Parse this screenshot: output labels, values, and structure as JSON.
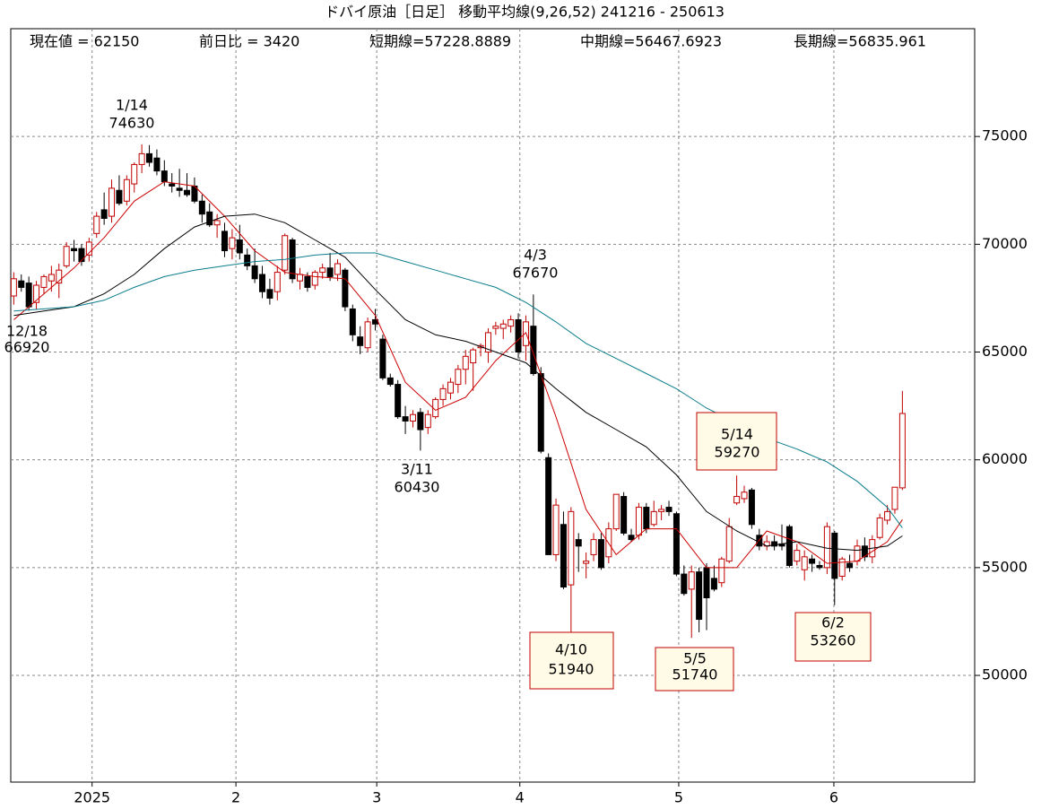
{
  "chart_data": {
    "type": "candlestick",
    "title": "ドバイ原油［日足］ 移動平均線(9,26,52)  241216 - 250613",
    "header": [
      "現在値 = 62150",
      "前日比 = 3420",
      "短期線=57228.8889",
      "中期線=56467.6923",
      "長期線=56835.961"
    ],
    "up_color": "#c00000",
    "down_color": "#000000",
    "candles": [
      [
        67600,
        68700,
        67200,
        68400
      ],
      [
        68300,
        68600,
        67800,
        68000
      ],
      [
        68200,
        68500,
        66920,
        67100
      ],
      [
        67300,
        68300,
        67000,
        68100
      ],
      [
        68000,
        68600,
        67700,
        68500
      ],
      [
        68300,
        69000,
        67800,
        68600
      ],
      [
        68200,
        69100,
        67500,
        68800
      ],
      [
        69000,
        70100,
        68900,
        69900
      ],
      [
        69800,
        70200,
        69200,
        69700
      ],
      [
        69800,
        70000,
        69000,
        69200
      ],
      [
        69500,
        70300,
        69200,
        70100
      ],
      [
        70500,
        71500,
        70300,
        71300
      ],
      [
        71600,
        72400,
        70900,
        71200
      ],
      [
        71300,
        73000,
        71000,
        72600
      ],
      [
        72500,
        73200,
        71800,
        71900
      ],
      [
        72000,
        73200,
        71800,
        73000
      ],
      [
        72800,
        73800,
        72400,
        73700
      ],
      [
        73700,
        74630,
        73300,
        74200
      ],
      [
        74200,
        74600,
        73600,
        73800
      ],
      [
        74000,
        74400,
        73200,
        73400
      ],
      [
        73400,
        73900,
        72700,
        72900
      ],
      [
        72800,
        73300,
        72400,
        72700
      ],
      [
        72600,
        73500,
        72200,
        72500
      ],
      [
        72500,
        73300,
        72200,
        72300
      ],
      [
        72700,
        73100,
        71900,
        72000
      ],
      [
        72000,
        72300,
        71000,
        71400
      ],
      [
        71500,
        71900,
        70800,
        70900
      ],
      [
        70900,
        71400,
        70300,
        71100
      ],
      [
        70600,
        71000,
        69400,
        69700
      ],
      [
        69800,
        70700,
        69300,
        70300
      ],
      [
        70200,
        70900,
        69300,
        69600
      ],
      [
        69500,
        69800,
        68800,
        69000
      ],
      [
        69000,
        69800,
        68200,
        68400
      ],
      [
        68600,
        69000,
        67500,
        67800
      ],
      [
        67900,
        68400,
        67200,
        67500
      ],
      [
        67800,
        69000,
        67400,
        68700
      ],
      [
        68800,
        70500,
        68600,
        70400
      ],
      [
        70200,
        70300,
        68200,
        68400
      ],
      [
        68300,
        68900,
        67900,
        68600
      ],
      [
        68500,
        68700,
        67800,
        68000
      ],
      [
        68100,
        68800,
        67900,
        68700
      ],
      [
        68700,
        69100,
        68400,
        68900
      ],
      [
        68900,
        69600,
        68300,
        68500
      ],
      [
        68600,
        69300,
        68300,
        69100
      ],
      [
        68800,
        68900,
        66900,
        67100
      ],
      [
        67000,
        67200,
        65500,
        65800
      ],
      [
        65700,
        66200,
        64900,
        65300
      ],
      [
        65200,
        66600,
        65000,
        66400
      ],
      [
        66500,
        67000,
        66000,
        66300
      ],
      [
        65600,
        65800,
        63700,
        63800
      ],
      [
        63800,
        64000,
        63400,
        63500
      ],
      [
        63500,
        63700,
        61900,
        62000
      ],
      [
        62000,
        62500,
        61200,
        61800
      ],
      [
        61800,
        62300,
        61500,
        62100
      ],
      [
        62200,
        62400,
        60430,
        61400
      ],
      [
        61500,
        62300,
        61200,
        62100
      ],
      [
        62000,
        62900,
        61900,
        62800
      ],
      [
        62800,
        63500,
        62500,
        63300
      ],
      [
        63100,
        63800,
        62800,
        63600
      ],
      [
        63500,
        64400,
        63100,
        64200
      ],
      [
        64200,
        65100,
        63500,
        64800
      ],
      [
        64500,
        65200,
        63200,
        65100
      ],
      [
        65200,
        65400,
        64800,
        65300
      ],
      [
        65000,
        66100,
        64500,
        65900
      ],
      [
        66100,
        66400,
        65800,
        66200
      ],
      [
        66100,
        66500,
        65600,
        66300
      ],
      [
        66200,
        66700,
        65900,
        66500
      ],
      [
        66500,
        66800,
        64700,
        65000
      ],
      [
        65300,
        66700,
        64600,
        66400
      ],
      [
        66200,
        67670,
        63900,
        64000
      ],
      [
        64000,
        64300,
        60300,
        60400
      ],
      [
        60100,
        60300,
        55600,
        55600
      ],
      [
        55600,
        58200,
        55300,
        57900
      ],
      [
        57000,
        57600,
        54000,
        54100
      ],
      [
        54200,
        57800,
        51940,
        57600
      ],
      [
        56300,
        56600,
        54800,
        56000
      ],
      [
        55200,
        55700,
        54500,
        55300
      ],
      [
        55600,
        56600,
        55300,
        56300
      ],
      [
        56300,
        56600,
        54900,
        55000
      ],
      [
        55500,
        57100,
        55200,
        56800
      ],
      [
        56800,
        58400,
        56700,
        58400
      ],
      [
        58300,
        58500,
        56500,
        56600
      ],
      [
        56500,
        56800,
        56200,
        56300
      ],
      [
        56500,
        58000,
        56300,
        57800
      ],
      [
        57800,
        58000,
        56600,
        56800
      ],
      [
        57000,
        58100,
        56900,
        57600
      ],
      [
        57600,
        57900,
        57200,
        57700
      ],
      [
        57800,
        58100,
        57400,
        57600
      ],
      [
        57500,
        57600,
        54600,
        54700
      ],
      [
        54700,
        55100,
        53700,
        53800
      ],
      [
        54000,
        55100,
        51740,
        54800
      ],
      [
        54800,
        55000,
        52000,
        52600
      ],
      [
        55000,
        55200,
        52100,
        53600
      ],
      [
        54500,
        55100,
        53900,
        54000
      ],
      [
        54300,
        55500,
        54100,
        55400
      ],
      [
        55300,
        57300,
        55200,
        56900
      ],
      [
        58000,
        59270,
        57900,
        58300
      ],
      [
        58200,
        58800,
        58000,
        58500
      ],
      [
        58600,
        58700,
        56800,
        57000
      ],
      [
        56500,
        56800,
        55800,
        56000
      ],
      [
        56000,
        56500,
        55800,
        56200
      ],
      [
        56200,
        56500,
        55800,
        56000
      ],
      [
        56100,
        57000,
        55800,
        56000
      ],
      [
        56900,
        57000,
        55000,
        55100
      ],
      [
        55300,
        56100,
        55100,
        55800
      ],
      [
        54900,
        55800,
        54400,
        55500
      ],
      [
        55400,
        55600,
        54800,
        55200
      ],
      [
        55100,
        55300,
        54900,
        55000
      ],
      [
        55000,
        57100,
        54700,
        56900
      ],
      [
        56600,
        56700,
        53260,
        54500
      ],
      [
        54600,
        55500,
        54400,
        55400
      ],
      [
        55200,
        55600,
        54800,
        55000
      ],
      [
        55300,
        56300,
        55100,
        56000
      ],
      [
        56000,
        56400,
        55300,
        55500
      ],
      [
        55500,
        56500,
        55200,
        56300
      ],
      [
        56400,
        57500,
        56300,
        57300
      ],
      [
        57200,
        57900,
        57000,
        57600
      ],
      [
        57700,
        58500,
        57500,
        58730
      ],
      [
        58700,
        63200,
        58600,
        62150
      ]
    ],
    "ma_x": [
      0,
      4,
      8,
      12,
      16,
      20,
      24,
      28,
      32,
      36,
      40,
      44,
      48,
      52,
      56,
      60,
      64,
      68,
      72,
      76,
      80,
      84,
      88,
      92,
      96,
      100,
      104,
      108,
      112,
      116,
      118
    ],
    "series": [
      {
        "color": "#cc0000",
        "values": [
          66500,
          67700,
          68900,
          70300,
          72000,
          72900,
          72700,
          71300,
          69700,
          68700,
          68500,
          68400,
          66700,
          63600,
          62300,
          62900,
          64600,
          65900,
          62000,
          57700,
          55600,
          56800,
          56800,
          55000,
          55000,
          56700,
          56200,
          55200,
          55300,
          56200,
          57230
        ]
      },
      {
        "color": "#000000",
        "values": [
          66700,
          66900,
          67100,
          67700,
          68600,
          69800,
          70800,
          71300,
          71400,
          71000,
          70200,
          69400,
          67900,
          66500,
          65800,
          65500,
          65000,
          64500,
          63300,
          62200,
          61400,
          60600,
          59300,
          57600,
          56700,
          56000,
          56200,
          55900,
          55800,
          56000,
          56470
        ]
      },
      {
        "color": "#0a7d8c",
        "values": [
          66900,
          67000,
          67100,
          67400,
          68000,
          68500,
          68800,
          69000,
          69200,
          69300,
          69500,
          69600,
          69600,
          69200,
          68800,
          68400,
          68000,
          67300,
          66400,
          65400,
          64700,
          64000,
          63300,
          62400,
          61700,
          61000,
          60500,
          59900,
          59000,
          57800,
          56840
        ]
      }
    ],
    "annotations": [
      {
        "lines": [
          "1/14",
          "74630"
        ],
        "boxed": false
      },
      {
        "lines": [
          "12/18",
          "66920"
        ],
        "boxed": false
      },
      {
        "lines": [
          "3/11",
          "60430"
        ],
        "boxed": false
      },
      {
        "lines": [
          "4/3",
          "67670"
        ],
        "boxed": false
      },
      {
        "lines": [
          "5/14",
          "59270"
        ],
        "boxed": true
      },
      {
        "lines": [
          "4/10",
          "51940"
        ],
        "boxed": true
      },
      {
        "lines": [
          "5/5",
          "51740"
        ],
        "boxed": true
      },
      {
        "lines": [
          "6/2",
          "53260"
        ],
        "boxed": true
      }
    ],
    "xlim": [
      -0.4,
      127.6
    ],
    "xticks": [
      {
        "value": 10.4,
        "label": "2025"
      },
      {
        "value": 29.5,
        "label": "2"
      },
      {
        "value": 48.2,
        "label": "3"
      },
      {
        "value": 67.2,
        "label": "4"
      },
      {
        "value": 88.3,
        "label": "5"
      },
      {
        "value": 108.9,
        "label": "6"
      }
    ],
    "ylim": [
      45050,
      80000
    ],
    "yticks": [
      50000,
      55000,
      60000,
      65000,
      70000,
      75000
    ],
    "grid": true
  }
}
